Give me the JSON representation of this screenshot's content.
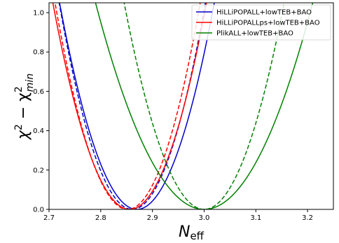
{
  "chart_data": {
    "type": "line",
    "xlabel": "N",
    "xlabel_sub": "eff",
    "ylabel": "χ",
    "ylabel_sup1": "2",
    "ylabel_mid": " − χ",
    "ylabel_sup2": "2",
    "ylabel_sub2": "min",
    "xlim": [
      2.7,
      3.25
    ],
    "ylim": [
      0.0,
      1.05
    ],
    "xticks": [
      "2.7",
      "2.8",
      "2.9",
      "3.0",
      "3.1",
      "3.2"
    ],
    "yticks": [
      "0.0",
      "0.2",
      "0.4",
      "0.6",
      "0.8",
      "1.0"
    ],
    "grid": false,
    "legend_placement": "top-right",
    "series": [
      {
        "name": "HiLLiPOPALL+lowTEB+BAO",
        "color": "#0000cc",
        "style": "solid",
        "min": 2.87,
        "width": 0.146
      },
      {
        "name": "",
        "color": "#0000cc",
        "style": "dashed",
        "min": 2.861,
        "width": 0.138
      },
      {
        "name": "HiLLiPOPALLps+lowTEB+BAO",
        "color": "#ff0000",
        "style": "solid",
        "min": 2.856,
        "width": 0.145
      },
      {
        "name": "",
        "color": "#ff0000",
        "style": "dashed",
        "min": 2.852,
        "width": 0.137
      },
      {
        "name": "PlikALL+lowTEB+BAO",
        "color": "#008000",
        "style": "solid",
        "min": 3.0,
        "width": 0.205
      },
      {
        "name": "",
        "color": "#008000",
        "style": "dashed",
        "min": 3.0,
        "width": 0.151
      }
    ]
  }
}
